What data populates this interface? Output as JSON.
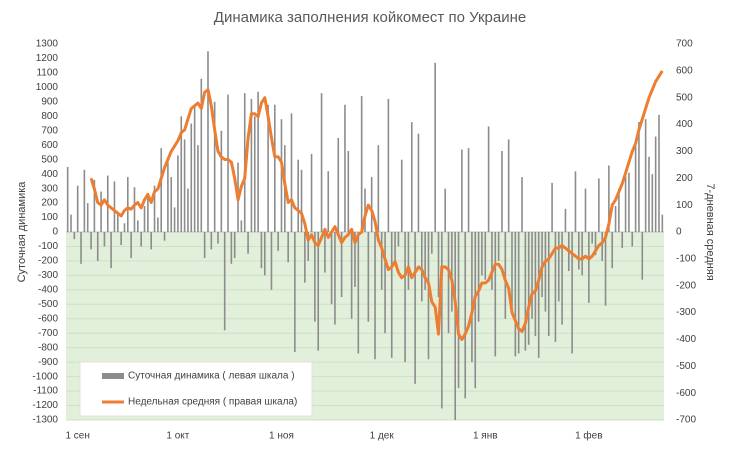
{
  "chart_data": {
    "type": "combo",
    "title": "Динамика заполнения койкомест по Украине",
    "y_label": "Суточная динамика",
    "y2_label": "7-дневная средняя",
    "categories": [
      "1 сен",
      null,
      null,
      null,
      null,
      null,
      null,
      null,
      null,
      null,
      null,
      null,
      null,
      null,
      null,
      null,
      null,
      null,
      null,
      null,
      null,
      null,
      null,
      null,
      null,
      null,
      null,
      null,
      null,
      null,
      "1 окт",
      null,
      null,
      null,
      null,
      null,
      null,
      null,
      null,
      null,
      null,
      null,
      null,
      null,
      null,
      null,
      null,
      null,
      null,
      null,
      null,
      null,
      null,
      null,
      null,
      null,
      null,
      null,
      null,
      null,
      null,
      "1 ноя",
      null,
      null,
      null,
      null,
      null,
      null,
      null,
      null,
      null,
      null,
      null,
      null,
      null,
      null,
      null,
      null,
      null,
      null,
      null,
      null,
      null,
      null,
      null,
      null,
      null,
      null,
      null,
      null,
      null,
      "1 дек",
      null,
      null,
      null,
      null,
      null,
      null,
      null,
      null,
      null,
      null,
      null,
      null,
      null,
      null,
      null,
      null,
      null,
      null,
      null,
      null,
      null,
      null,
      null,
      null,
      null,
      null,
      null,
      null,
      null,
      null,
      "1 янв",
      null,
      null,
      null,
      null,
      null,
      null,
      null,
      null,
      null,
      null,
      null,
      null,
      null,
      null,
      null,
      null,
      null,
      null,
      null,
      null,
      null,
      null,
      null,
      null,
      null,
      null,
      null,
      null,
      null,
      null,
      "1 фев",
      null,
      null,
      null,
      null,
      null,
      null,
      null,
      null,
      null,
      null,
      null,
      null,
      null,
      null,
      null,
      null,
      null,
      null,
      null,
      null,
      null,
      null,
      null,
      null,
      null
    ],
    "series": [
      {
        "name": "Суточная динамика ( левая шкала )",
        "type": "bar",
        "color": "#8c8c8c",
        "values": [
          450,
          120,
          -50,
          320,
          -220,
          430,
          200,
          -120,
          360,
          -200,
          280,
          -100,
          390,
          -250,
          350,
          130,
          -90,
          60,
          380,
          -180,
          310,
          80,
          -100,
          180,
          270,
          -120,
          320,
          100,
          580,
          -60,
          480,
          380,
          170,
          530,
          800,
          640,
          300,
          750,
          880,
          600,
          1060,
          -180,
          1250,
          -120,
          900,
          -80,
          700,
          -680,
          950,
          -220,
          -180,
          480,
          80,
          960,
          -150,
          920,
          800,
          970,
          -250,
          -300,
          880,
          -400,
          880,
          -130,
          780,
          600,
          -210,
          820,
          -830,
          500,
          430,
          -350,
          -200,
          540,
          -620,
          -820,
          960,
          -280,
          420,
          -500,
          -640,
          650,
          -450,
          880,
          560,
          -600,
          -380,
          -840,
          940,
          300,
          -620,
          380,
          -880,
          600,
          -400,
          -700,
          920,
          -870,
          -200,
          -100,
          500,
          -900,
          -400,
          760,
          -1050,
          680,
          -480,
          -400,
          -880,
          -150,
          1170,
          -450,
          -1220,
          300,
          -700,
          -550,
          -1300,
          -1080,
          570,
          -1150,
          580,
          -900,
          -1080,
          -620,
          -300,
          -330,
          730,
          -400,
          -860,
          -200,
          560,
          -600,
          640,
          -550,
          -860,
          -840,
          380,
          -820,
          -780,
          -600,
          -720,
          -870,
          -450,
          -550,
          -720,
          340,
          -760,
          -480,
          -640,
          160,
          -270,
          -840,
          420,
          -260,
          -300,
          300,
          -490,
          -80,
          -160,
          370,
          -200,
          -510,
          460,
          -250,
          180,
          300,
          -110,
          390,
          410,
          -100,
          600,
          760,
          -330,
          780,
          520,
          400,
          660,
          810,
          120
        ]
      },
      {
        "name": "Недельная средняя ( правая шкала)",
        "type": "line",
        "axis": "y2",
        "color": "#ed7d31",
        "values": [
          null,
          null,
          null,
          null,
          null,
          null,
          null,
          200,
          160,
          110,
          100,
          120,
          100,
          90,
          80,
          70,
          60,
          80,
          90,
          85,
          100,
          110,
          90,
          120,
          140,
          110,
          150,
          160,
          200,
          240,
          270,
          300,
          320,
          340,
          370,
          380,
          420,
          460,
          470,
          480,
          460,
          520,
          530,
          470,
          380,
          300,
          280,
          270,
          270,
          260,
          200,
          120,
          170,
          200,
          350,
          440,
          440,
          430,
          480,
          500,
          430,
          350,
          280,
          280,
          260,
          180,
          110,
          120,
          90,
          80,
          70,
          30,
          -30,
          -10,
          -40,
          -50,
          -20,
          10,
          -20,
          0,
          20,
          -10,
          -40,
          -20,
          -10,
          10,
          -40,
          -10,
          0,
          60,
          100,
          80,
          40,
          -30,
          -60,
          -100,
          -140,
          -130,
          -110,
          -150,
          -170,
          -160,
          -130,
          -170,
          -150,
          -130,
          -140,
          -170,
          -190,
          -260,
          -280,
          -380,
          -130,
          -130,
          -140,
          -180,
          -260,
          -380,
          -400,
          -380,
          -350,
          -300,
          -240,
          -220,
          -190,
          -190,
          -180,
          -150,
          -120,
          -120,
          -140,
          -180,
          -210,
          -300,
          -330,
          -360,
          -370,
          -340,
          -280,
          -230,
          -220,
          -180,
          -130,
          -110,
          -100,
          -80,
          -60,
          -60,
          -50,
          -60,
          -70,
          -80,
          -90,
          -100,
          -100,
          -90,
          -100,
          -90,
          -70,
          -50,
          -40,
          -20,
          30,
          100,
          120,
          150,
          180,
          220,
          260,
          300,
          330,
          380,
          420,
          460,
          500,
          530,
          560,
          580,
          600
        ]
      }
    ],
    "ylim": [
      -1300,
      1300
    ],
    "yticks": [
      -1300,
      -1200,
      -1100,
      -1000,
      -900,
      -800,
      -700,
      -600,
      -500,
      -400,
      -300,
      -200,
      -100,
      0,
      100,
      200,
      300,
      400,
      500,
      600,
      700,
      800,
      900,
      1000,
      1100,
      1200,
      1300
    ],
    "y2lim": [
      -700,
      700
    ],
    "y2ticks": [
      -700,
      -600,
      -500,
      -400,
      -300,
      -200,
      -100,
      0,
      100,
      200,
      300,
      400,
      500,
      600,
      700
    ],
    "grid": true,
    "legend": "lower left"
  }
}
